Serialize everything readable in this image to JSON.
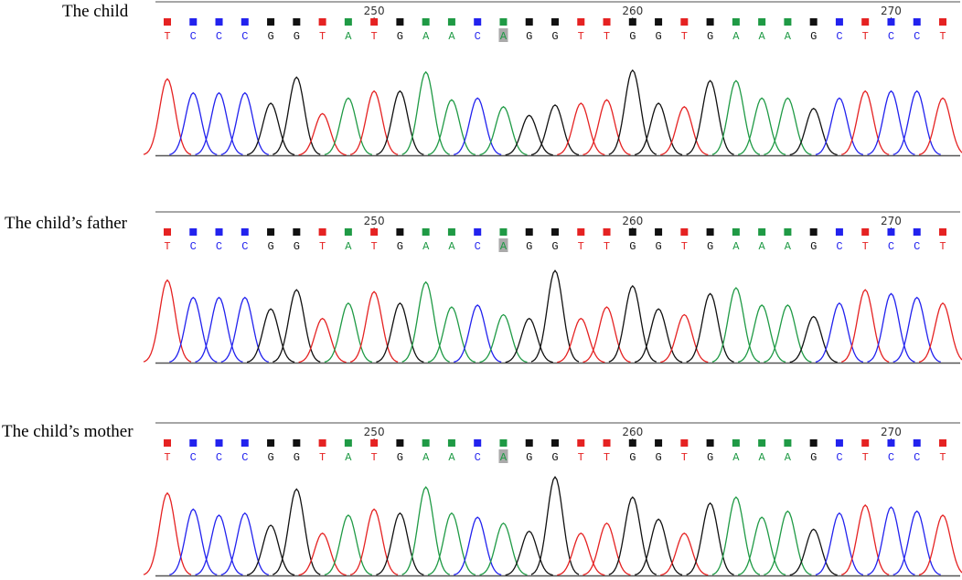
{
  "panels": [
    {
      "label": "The child",
      "bases": [
        "T",
        "C",
        "C",
        "C",
        "G",
        "G",
        "T",
        "A",
        "T",
        "G",
        "A",
        "A",
        "C",
        "A",
        "G",
        "G",
        "T",
        "T",
        "G",
        "G",
        "T",
        "G",
        "A",
        "A",
        "A",
        "G",
        "C",
        "T",
        "C",
        "C",
        "T"
      ],
      "peaks": [
        88,
        72,
        72,
        72,
        60,
        90,
        48,
        66,
        74,
        74,
        96,
        64,
        66,
        56,
        46,
        58,
        60,
        64,
        98,
        60,
        56,
        86,
        86,
        66,
        66,
        54,
        66,
        74,
        74,
        74,
        66
      ]
    },
    {
      "label": "The child’s father",
      "bases": [
        "T",
        "C",
        "C",
        "C",
        "G",
        "G",
        "T",
        "A",
        "T",
        "G",
        "A",
        "A",
        "C",
        "A",
        "G",
        "G",
        "T",
        "T",
        "G",
        "G",
        "T",
        "G",
        "A",
        "A",
        "A",
        "G",
        "C",
        "T",
        "C",
        "C",
        "T"
      ],
      "peaks": [
        86,
        68,
        68,
        68,
        56,
        76,
        46,
        62,
        74,
        62,
        84,
        58,
        60,
        50,
        46,
        96,
        46,
        58,
        80,
        56,
        50,
        72,
        78,
        60,
        60,
        48,
        62,
        76,
        72,
        68,
        62
      ]
    },
    {
      "label": "The child’s mother",
      "bases": [
        "T",
        "C",
        "C",
        "C",
        "G",
        "G",
        "T",
        "A",
        "T",
        "G",
        "A",
        "A",
        "C",
        "A",
        "G",
        "G",
        "T",
        "T",
        "G",
        "G",
        "T",
        "G",
        "A",
        "A",
        "A",
        "G",
        "C",
        "T",
        "C",
        "C",
        "T"
      ],
      "peaks": [
        82,
        66,
        60,
        62,
        50,
        86,
        42,
        60,
        66,
        62,
        88,
        62,
        58,
        52,
        44,
        98,
        42,
        52,
        78,
        56,
        42,
        72,
        78,
        58,
        64,
        46,
        62,
        70,
        68,
        64,
        60
      ]
    }
  ],
  "xlim": [
    242,
    272
  ],
  "xticks": [
    250,
    260,
    270
  ],
  "highlight": 13,
  "colors": {
    "A": "#1f9a45",
    "C": "#2222ee",
    "G": "#111111",
    "T": "#e52222"
  }
}
